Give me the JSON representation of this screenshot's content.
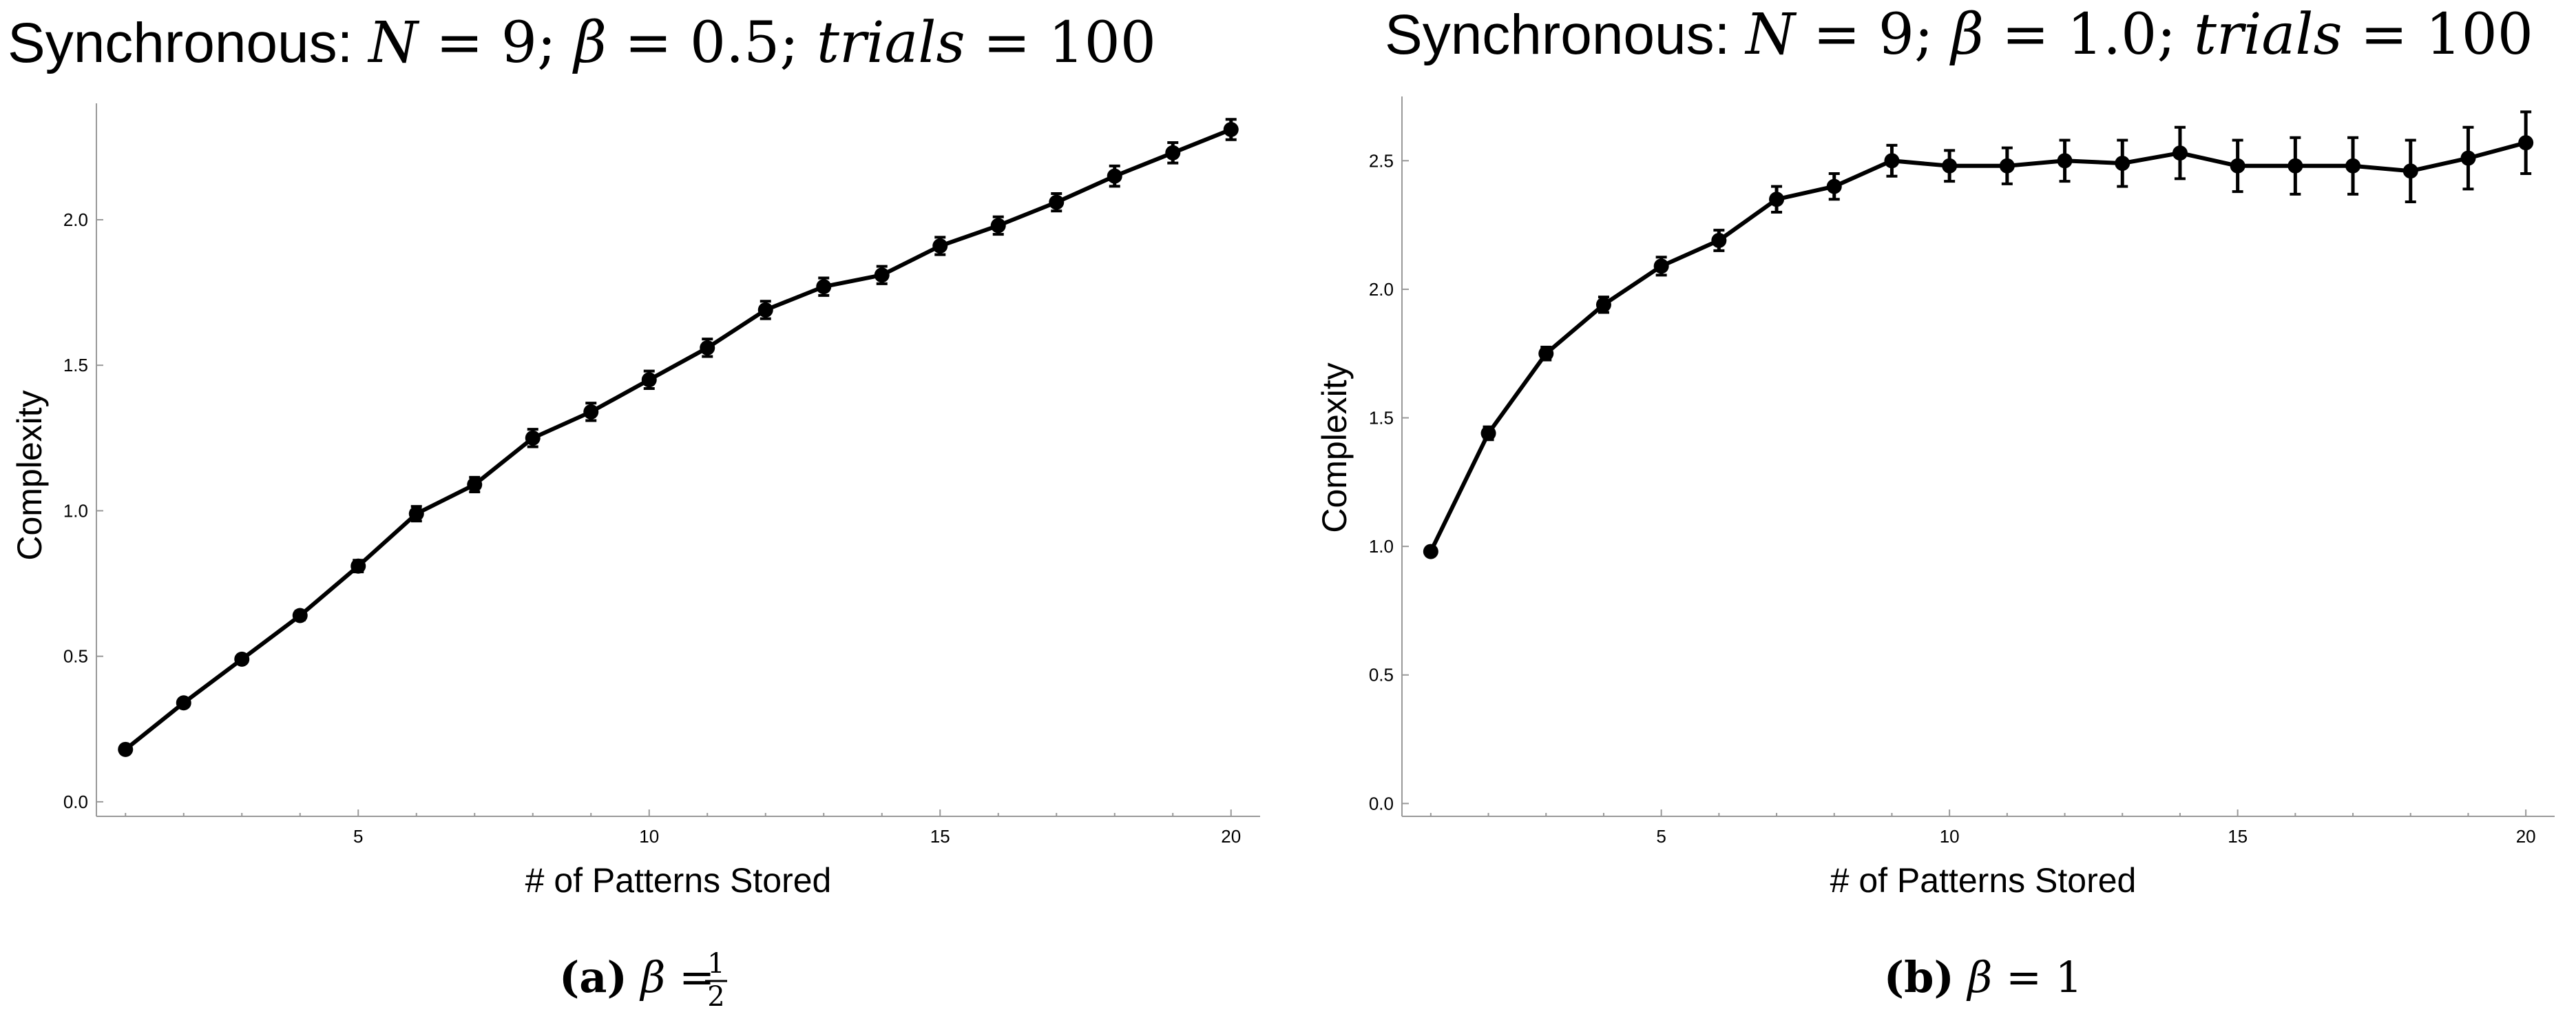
{
  "chart_data": [
    {
      "type": "line",
      "title": {
        "prefix": "Synchronous: ",
        "n_var": "N",
        "n_val": "9",
        "beta_sym": "β",
        "beta_val": "0.5",
        "trials_var": "trials",
        "trials_val": "100"
      },
      "xlabel": "# of Patterns Stored",
      "ylabel": "Complexity",
      "xlim": [
        0.5,
        20.5
      ],
      "ylim": [
        -0.05,
        2.4
      ],
      "xticks": [
        5,
        10,
        15,
        20
      ],
      "yticks": [
        0.0,
        0.5,
        1.0,
        1.5,
        2.0
      ],
      "ytick_labels": [
        "0.0",
        "0.5",
        "1.0",
        "1.5",
        "2.0"
      ],
      "x": [
        1,
        2,
        3,
        4,
        5,
        6,
        7,
        8,
        9,
        10,
        11,
        12,
        13,
        14,
        15,
        16,
        17,
        18,
        19,
        20
      ],
      "y": [
        0.18,
        0.34,
        0.49,
        0.64,
        0.81,
        0.99,
        1.09,
        1.25,
        1.34,
        1.45,
        1.56,
        1.69,
        1.77,
        1.81,
        1.91,
        1.98,
        2.06,
        2.15,
        2.23,
        2.31
      ],
      "err": [
        0.01,
        0.01,
        0.01,
        0.015,
        0.02,
        0.025,
        0.025,
        0.03,
        0.03,
        0.03,
        0.03,
        0.03,
        0.03,
        0.03,
        0.03,
        0.03,
        0.03,
        0.035,
        0.035,
        0.035
      ],
      "caption": {
        "label": "(a)",
        "beta_sym": "β",
        "eq": "=",
        "num": "1",
        "den": "2"
      }
    },
    {
      "type": "line",
      "title": {
        "prefix": "Synchronous: ",
        "n_var": "N",
        "n_val": "9",
        "beta_sym": "β",
        "beta_val": "1.0",
        "trials_var": "trials",
        "trials_val": "100"
      },
      "xlabel": "# of Patterns Stored",
      "ylabel": "Complexity",
      "xlim": [
        0.5,
        20.5
      ],
      "ylim": [
        -0.05,
        2.75
      ],
      "xticks": [
        5,
        10,
        15,
        20
      ],
      "yticks": [
        0.0,
        0.5,
        1.0,
        1.5,
        2.0,
        2.5
      ],
      "ytick_labels": [
        "0.0",
        "0.5",
        "1.0",
        "1.5",
        "2.0",
        "2.5"
      ],
      "x": [
        1,
        2,
        3,
        4,
        5,
        6,
        7,
        8,
        9,
        10,
        11,
        12,
        13,
        14,
        15,
        16,
        17,
        18,
        19,
        20
      ],
      "y": [
        0.98,
        1.44,
        1.75,
        1.94,
        2.09,
        2.19,
        2.35,
        2.4,
        2.5,
        2.48,
        2.48,
        2.5,
        2.49,
        2.53,
        2.48,
        2.48,
        2.48,
        2.46,
        2.51,
        2.57
      ],
      "err": [
        0.01,
        0.025,
        0.025,
        0.03,
        0.035,
        0.04,
        0.05,
        0.05,
        0.06,
        0.06,
        0.07,
        0.08,
        0.09,
        0.1,
        0.1,
        0.11,
        0.11,
        0.12,
        0.12,
        0.12
      ],
      "caption": {
        "label": "(b)",
        "beta_sym": "β",
        "eq": "=",
        "val": "1"
      }
    }
  ]
}
